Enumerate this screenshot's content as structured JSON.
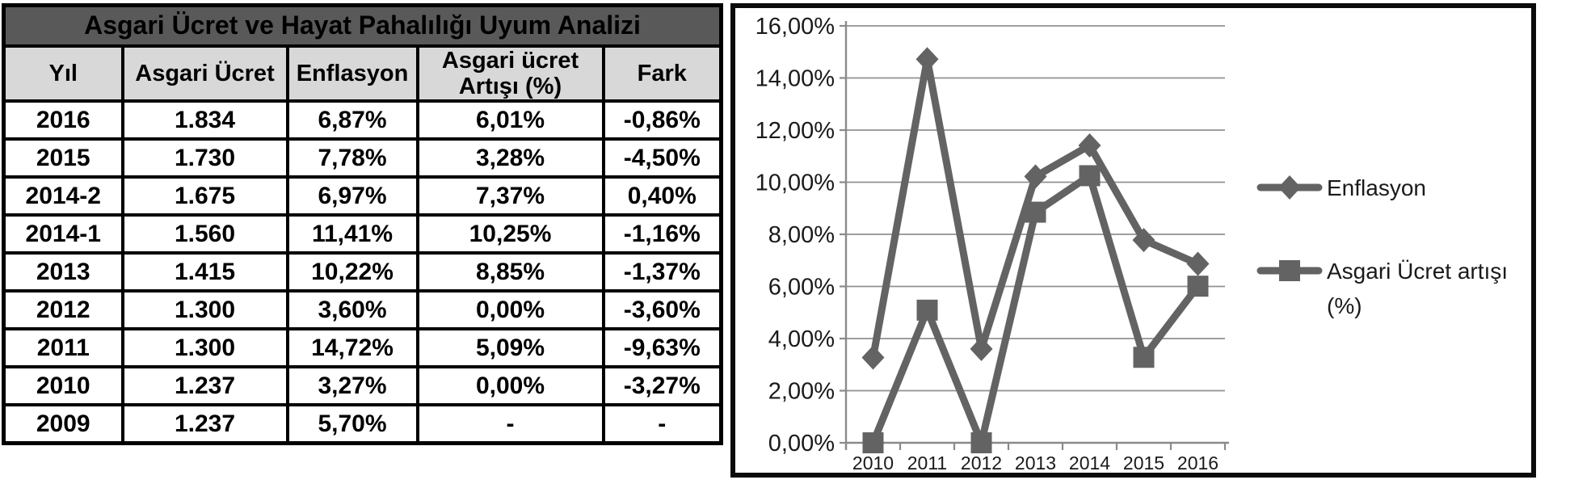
{
  "table": {
    "title": "Asgari Ücret ve Hayat Pahalılığı Uyum Analizi",
    "columns": [
      "Yıl",
      "Asgari Ücret",
      "Enflasyon",
      "Asgari ücret Artışı (%)",
      "Fark"
    ],
    "rows": [
      [
        "2016",
        "1.834",
        "6,87%",
        "6,01%",
        "-0,86%"
      ],
      [
        "2015",
        "1.730",
        "7,78%",
        "3,28%",
        "-4,50%"
      ],
      [
        "2014-2",
        "1.675",
        "6,97%",
        "7,37%",
        "0,40%"
      ],
      [
        "2014-1",
        "1.560",
        "11,41%",
        "10,25%",
        "-1,16%"
      ],
      [
        "2013",
        "1.415",
        "10,22%",
        "8,85%",
        "-1,37%"
      ],
      [
        "2012",
        "1.300",
        "3,60%",
        "0,00%",
        "-3,60%"
      ],
      [
        "2011",
        "1.300",
        "14,72%",
        "5,09%",
        "-9,63%"
      ],
      [
        "2010",
        "1.237",
        "3,27%",
        "0,00%",
        "-3,27%"
      ],
      [
        "2009",
        "1.237",
        "5,70%",
        "-",
        "-"
      ]
    ]
  },
  "chart_data": {
    "type": "line",
    "title": "",
    "xlabel": "",
    "ylabel": "",
    "categories": [
      "2010",
      "2011",
      "2012",
      "2013",
      "2014",
      "2015",
      "2016"
    ],
    "series": [
      {
        "name": "Enflasyon",
        "legend_lines": [
          "Enflasyon"
        ],
        "marker": "diamond",
        "values": [
          3.27,
          14.72,
          3.6,
          10.22,
          11.41,
          7.78,
          6.87
        ]
      },
      {
        "name": "Asgari Ücret artışı (%)",
        "legend_lines": [
          "Asgari Ücret artışı",
          "(%)"
        ],
        "marker": "square",
        "values": [
          0.0,
          5.09,
          0.0,
          8.85,
          10.25,
          3.28,
          6.01
        ]
      }
    ],
    "ylim": [
      0,
      16
    ],
    "ytick_step": 2,
    "ytick_labels": [
      "0,00%",
      "2,00%",
      "4,00%",
      "6,00%",
      "8,00%",
      "10,00%",
      "12,00%",
      "14,00%",
      "16,00%"
    ],
    "grid": true,
    "legend_position": "right",
    "colors": {
      "series": "#636363",
      "gridline": "#919191",
      "axis": "#8a8a8a",
      "text": "#1a1a1a"
    }
  },
  "colors": {
    "title_bg": "#595959",
    "title_text": "#FFFFFF",
    "header_bg": "#D8D8D8",
    "border": "#000000"
  }
}
